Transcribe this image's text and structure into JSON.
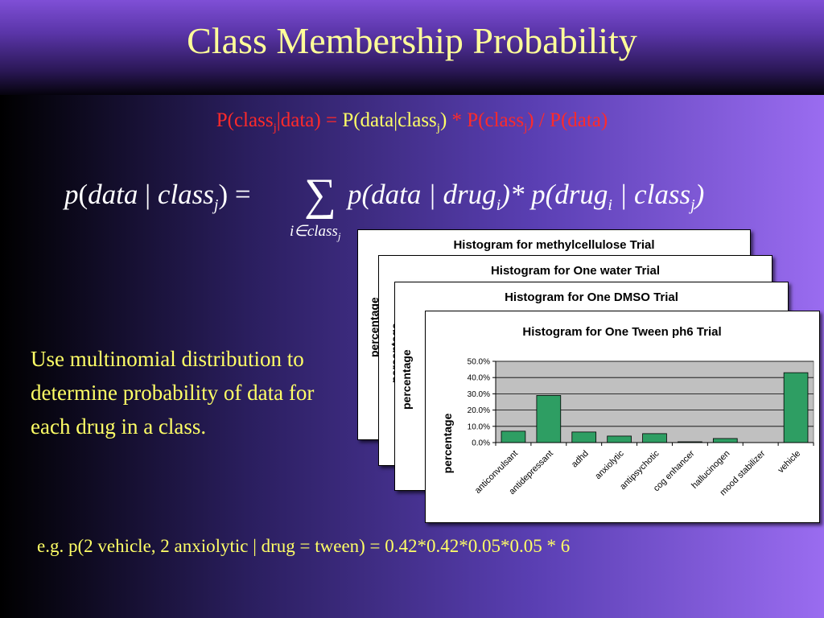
{
  "title": "Class Membership Probability",
  "bayes": {
    "lhs": "P(class",
    "lhs_sub": "j",
    "lhs_rest": "|data) = ",
    "mid": "P(data|class",
    "mid_sub": "j",
    "mid_rest": ")",
    "rhs": " * P(class",
    "rhs_sub": "j",
    "rhs_rest": ") / P(data)"
  },
  "equation": {
    "lhs_p": "p",
    "lhs_open": "(",
    "lhs_data": "data",
    "lhs_bar": " | ",
    "lhs_class": "class",
    "lhs_sub": "j",
    "lhs_close": ") =",
    "sigma": "∑",
    "sum_index": "i∈class",
    "sum_index_sub": "j",
    "rhs1": "p(data | drug",
    "rhs1_sub": "i",
    "rhs1_close": ")* p(drug",
    "rhs2_sub": "i",
    "rhs2_mid": " | class",
    "rhs3_sub": "j",
    "rhs3_close": ")"
  },
  "body_text": "Use multinomial distribution to determine probability of data for each drug in a class.",
  "example": "e.g. p(2 vehicle, 2 anxiolytic | drug = tween) = 0.42*0.42*0.05*0.05 * 6",
  "back_cards": [
    {
      "title": "Histogram for methylcellulose Trial",
      "ylabel": "percentage"
    },
    {
      "title": "Histogram for One water Trial",
      "ylabel": "percentage"
    },
    {
      "title": "Histogram for One DMSO Trial",
      "ylabel": "percentage"
    }
  ],
  "chart_data": {
    "type": "bar",
    "title": "Histogram for One Tween ph6 Trial",
    "ylabel": "percentage",
    "xlabel": "",
    "categories": [
      "anticonvulsant",
      "antidepressant",
      "adhd",
      "anxiolytic",
      "antipsychotic",
      "cog enhancer",
      "hallucinogen",
      "mood stabilizer",
      "vehicle"
    ],
    "values": [
      0.07,
      0.29,
      0.065,
      0.04,
      0.055,
      0.005,
      0.025,
      0.0,
      0.43
    ],
    "ylim": [
      0,
      0.5
    ],
    "yticks": [
      "0.0%",
      "10.0%",
      "20.0%",
      "30.0%",
      "40.0%",
      "50.0%"
    ],
    "grid": true,
    "bar_color": "#2e9e63",
    "plot_bg": "#c0c0c0"
  }
}
